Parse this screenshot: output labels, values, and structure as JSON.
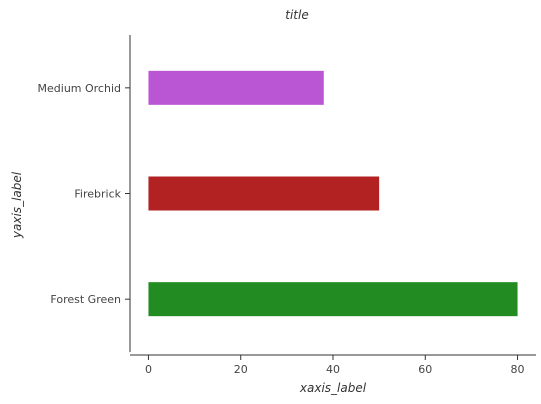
{
  "chart_data": {
    "type": "bar",
    "orientation": "horizontal",
    "title": "title",
    "xlabel": "xaxis_label",
    "ylabel": "yaxis_label",
    "categories": [
      "Forest Green",
      "Firebrick",
      "Medium Orchid"
    ],
    "values": [
      80,
      50,
      38
    ],
    "colors": [
      "#228b22",
      "#b22222",
      "#ba55d3"
    ],
    "xlim": [
      -4,
      84
    ],
    "xticks": [
      0,
      20,
      40,
      60,
      80
    ],
    "xtick_labels": [
      "0",
      "20",
      "40",
      "60",
      "80"
    ],
    "grid": false,
    "legend": "none"
  }
}
